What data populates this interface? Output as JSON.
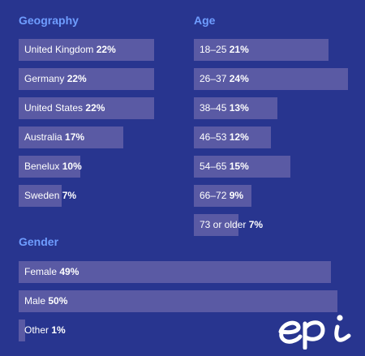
{
  "accent_color": "#6f9dff",
  "bar_color": "#5a5aa4",
  "background_color": "#28358f",
  "logo": {
    "name": "epi-logo",
    "text": "epi"
  },
  "chart_data": [
    {
      "type": "bar",
      "orientation": "horizontal",
      "title": "Geography",
      "categories": [
        "United Kingdom",
        "Germany",
        "United States",
        "Australia",
        "Benelux",
        "Sweden"
      ],
      "values": [
        22,
        22,
        22,
        17,
        10,
        7
      ],
      "value_labels": [
        "22%",
        "22%",
        "22%",
        "17%",
        "10%",
        "7%"
      ],
      "unit": "%"
    },
    {
      "type": "bar",
      "orientation": "horizontal",
      "title": "Age",
      "categories": [
        "18–25",
        "26–37",
        "38–45",
        "46–53",
        "54–65",
        "66–72",
        "73 or older"
      ],
      "values": [
        21,
        24,
        13,
        12,
        15,
        9,
        7
      ],
      "value_labels": [
        "21%",
        "24%",
        "13%",
        "12%",
        "15%",
        "9%",
        "7%"
      ],
      "unit": "%"
    },
    {
      "type": "bar",
      "orientation": "horizontal",
      "title": "Gender",
      "categories": [
        "Female",
        "Male",
        "Other"
      ],
      "values": [
        49,
        50,
        1
      ],
      "value_labels": [
        "49%",
        "50%",
        "1%"
      ],
      "unit": "%"
    }
  ]
}
